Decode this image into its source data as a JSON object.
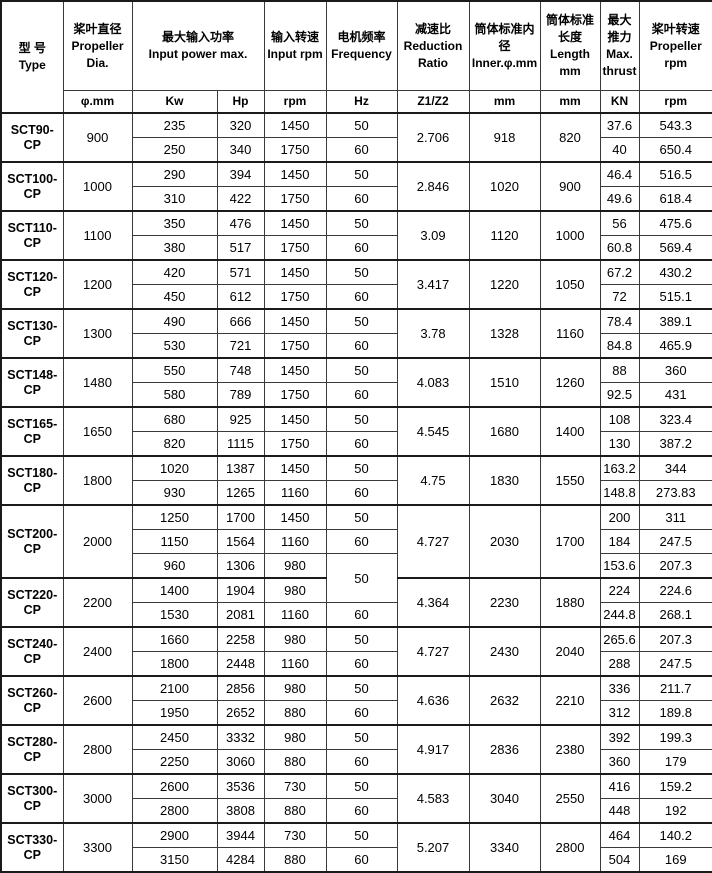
{
  "table": {
    "columns": [
      {
        "id": "type",
        "zh": "型 号",
        "en": "Type"
      },
      {
        "id": "propeller-dia",
        "zh": "桨叶直径",
        "en": "Propeller Dia."
      },
      {
        "id": "input-power",
        "zh": "最大输入功率",
        "en": "Input power max.",
        "colspan": 2
      },
      {
        "id": "input-rpm",
        "zh": "输入转速",
        "en": "Input rpm"
      },
      {
        "id": "frequency",
        "zh": "电机频率",
        "en": "Frequency"
      },
      {
        "id": "reduction-ratio",
        "zh": "减速比",
        "en": "Reduction Ratio"
      },
      {
        "id": "inner-dia",
        "zh": "筒体标准内径",
        "en": "Inner.φ.mm"
      },
      {
        "id": "length",
        "zh": "筒体标准长度",
        "en": "Length mm"
      },
      {
        "id": "max-thrust",
        "zh": "最大推力",
        "en": "Max. thrust"
      },
      {
        "id": "propeller-rpm",
        "zh": "桨叶转速",
        "en": "Propeller rpm"
      }
    ],
    "units": [
      {
        "id": "dia-unit",
        "label": "φ.mm"
      },
      {
        "id": "kw-unit",
        "label": "Kw"
      },
      {
        "id": "hp-unit",
        "label": "Hp"
      },
      {
        "id": "rpm-unit",
        "label": "rpm"
      },
      {
        "id": "hz-unit",
        "label": "Hz"
      },
      {
        "id": "ratio-unit",
        "label": "Z1/Z2"
      },
      {
        "id": "inner-unit",
        "label": "mm"
      },
      {
        "id": "length-unit",
        "label": "mm"
      },
      {
        "id": "thrust-unit",
        "label": "KN"
      },
      {
        "id": "prop-rpm-unit",
        "label": "rpm"
      }
    ],
    "groups": [
      {
        "type": "SCT90-CP",
        "dia": "900",
        "ratio": "2.706",
        "inner": "918",
        "length": "820",
        "rows": [
          {
            "kw": "235",
            "hp": "320",
            "rpm": "1450",
            "hz": "50",
            "thrust": "37.6",
            "prop_rpm": "543.3"
          },
          {
            "kw": "250",
            "hp": "340",
            "rpm": "1750",
            "hz": "60",
            "thrust": "40",
            "prop_rpm": "650.4"
          }
        ]
      },
      {
        "type": "SCT100-CP",
        "dia": "1000",
        "ratio": "2.846",
        "inner": "1020",
        "length": "900",
        "rows": [
          {
            "kw": "290",
            "hp": "394",
            "rpm": "1450",
            "hz": "50",
            "thrust": "46.4",
            "prop_rpm": "516.5"
          },
          {
            "kw": "310",
            "hp": "422",
            "rpm": "1750",
            "hz": "60",
            "thrust": "49.6",
            "prop_rpm": "618.4"
          }
        ]
      },
      {
        "type": "SCT110-CP",
        "dia": "1100",
        "ratio": "3.09",
        "inner": "1120",
        "length": "1000",
        "rows": [
          {
            "kw": "350",
            "hp": "476",
            "rpm": "1450",
            "hz": "50",
            "thrust": "56",
            "prop_rpm": "475.6"
          },
          {
            "kw": "380",
            "hp": "517",
            "rpm": "1750",
            "hz": "60",
            "thrust": "60.8",
            "prop_rpm": "569.4"
          }
        ]
      },
      {
        "type": "SCT120-CP",
        "dia": "1200",
        "ratio": "3.417",
        "inner": "1220",
        "length": "1050",
        "rows": [
          {
            "kw": "420",
            "hp": "571",
            "rpm": "1450",
            "hz": "50",
            "thrust": "67.2",
            "prop_rpm": "430.2"
          },
          {
            "kw": "450",
            "hp": "612",
            "rpm": "1750",
            "hz": "60",
            "thrust": "72",
            "prop_rpm": "515.1"
          }
        ]
      },
      {
        "type": "SCT130-CP",
        "dia": "1300",
        "ratio": "3.78",
        "inner": "1328",
        "length": "1160",
        "rows": [
          {
            "kw": "490",
            "hp": "666",
            "rpm": "1450",
            "hz": "50",
            "thrust": "78.4",
            "prop_rpm": "389.1"
          },
          {
            "kw": "530",
            "hp": "721",
            "rpm": "1750",
            "hz": "60",
            "thrust": "84.8",
            "prop_rpm": "465.9"
          }
        ]
      },
      {
        "type": "SCT148-CP",
        "dia": "1480",
        "ratio": "4.083",
        "inner": "1510",
        "length": "1260",
        "rows": [
          {
            "kw": "550",
            "hp": "748",
            "rpm": "1450",
            "hz": "50",
            "thrust": "88",
            "prop_rpm": "360"
          },
          {
            "kw": "580",
            "hp": "789",
            "rpm": "1750",
            "hz": "60",
            "thrust": "92.5",
            "prop_rpm": "431"
          }
        ]
      },
      {
        "type": "SCT165-CP",
        "dia": "1650",
        "ratio": "4.545",
        "inner": "1680",
        "length": "1400",
        "rows": [
          {
            "kw": "680",
            "hp": "925",
            "rpm": "1450",
            "hz": "50",
            "thrust": "108",
            "prop_rpm": "323.4"
          },
          {
            "kw": "820",
            "hp": "1115",
            "rpm": "1750",
            "hz": "60",
            "thrust": "130",
            "prop_rpm": "387.2"
          }
        ]
      },
      {
        "type": "SCT180-CP",
        "dia": "1800",
        "ratio": "4.75",
        "inner": "1830",
        "length": "1550",
        "rows": [
          {
            "kw": "1020",
            "hp": "1387",
            "rpm": "1450",
            "hz": "50",
            "thrust": "163.2",
            "prop_rpm": "344"
          },
          {
            "kw": "930",
            "hp": "1265",
            "rpm": "1160",
            "hz": "60",
            "thrust": "148.8",
            "prop_rpm": "273.83"
          }
        ]
      },
      {
        "type": "SCT200-CP",
        "dia": "2000",
        "ratio": "4.727",
        "inner": "2030",
        "length": "1700",
        "rows": [
          {
            "kw": "1250",
            "hp": "1700",
            "rpm": "1450",
            "hz": "50",
            "thrust": "200",
            "prop_rpm": "311"
          },
          {
            "kw": "1150",
            "hp": "1564",
            "rpm": "1160",
            "hz": "60",
            "thrust": "184",
            "prop_rpm": "247.5"
          },
          {
            "kw": "960",
            "hp": "1306",
            "rpm": "980",
            "hz": "50",
            "hz_span": 2,
            "thrust": "153.6",
            "prop_rpm": "207.3"
          }
        ]
      },
      {
        "type": "SCT220-CP",
        "dia": "2200",
        "ratio": "4.364",
        "inner": "2230",
        "length": "1880",
        "rows": [
          {
            "kw": "1400",
            "hp": "1904",
            "rpm": "980",
            "hz": null,
            "thrust": "224",
            "prop_rpm": "224.6"
          },
          {
            "kw": "1530",
            "hp": "2081",
            "rpm": "1160",
            "hz": "60",
            "thrust": "244.8",
            "prop_rpm": "268.1"
          }
        ]
      },
      {
        "type": "SCT240-CP",
        "dia": "2400",
        "ratio": "4.727",
        "inner": "2430",
        "length": "2040",
        "rows": [
          {
            "kw": "1660",
            "hp": "2258",
            "rpm": "980",
            "hz": "50",
            "thrust": "265.6",
            "prop_rpm": "207.3"
          },
          {
            "kw": "1800",
            "hp": "2448",
            "rpm": "1160",
            "hz": "60",
            "thrust": "288",
            "prop_rpm": "247.5"
          }
        ]
      },
      {
        "type": "SCT260-CP",
        "dia": "2600",
        "ratio": "4.636",
        "inner": "2632",
        "length": "2210",
        "rows": [
          {
            "kw": "2100",
            "hp": "2856",
            "rpm": "980",
            "hz": "50",
            "thrust": "336",
            "prop_rpm": "211.7"
          },
          {
            "kw": "1950",
            "hp": "2652",
            "rpm": "880",
            "hz": "60",
            "thrust": "312",
            "prop_rpm": "189.8"
          }
        ]
      },
      {
        "type": "SCT280-CP",
        "dia": "2800",
        "ratio": "4.917",
        "inner": "2836",
        "length": "2380",
        "rows": [
          {
            "kw": "2450",
            "hp": "3332",
            "rpm": "980",
            "hz": "50",
            "thrust": "392",
            "prop_rpm": "199.3"
          },
          {
            "kw": "2250",
            "hp": "3060",
            "rpm": "880",
            "hz": "60",
            "thrust": "360",
            "prop_rpm": "179"
          }
        ]
      },
      {
        "type": "SCT300-CP",
        "dia": "3000",
        "ratio": "4.583",
        "inner": "3040",
        "length": "2550",
        "rows": [
          {
            "kw": "2600",
            "hp": "3536",
            "rpm": "730",
            "hz": "50",
            "thrust": "416",
            "prop_rpm": "159.2"
          },
          {
            "kw": "2800",
            "hp": "3808",
            "rpm": "880",
            "hz": "60",
            "thrust": "448",
            "prop_rpm": "192"
          }
        ]
      },
      {
        "type": "SCT330-CP",
        "dia": "3300",
        "ratio": "5.207",
        "inner": "3340",
        "length": "2800",
        "rows": [
          {
            "kw": "2900",
            "hp": "3944",
            "rpm": "730",
            "hz": "50",
            "thrust": "464",
            "prop_rpm": "140.2"
          },
          {
            "kw": "3150",
            "hp": "4284",
            "rpm": "880",
            "hz": "60",
            "thrust": "504",
            "prop_rpm": "169"
          }
        ]
      }
    ]
  }
}
